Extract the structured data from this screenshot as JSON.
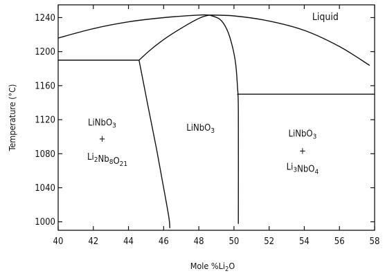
{
  "chart_data": {
    "type": "phase-diagram",
    "xlabel": {
      "pre": "Mole %Li",
      "sub": "2",
      "post": "O"
    },
    "ylabel": "Temperature (°C)",
    "xlim": [
      40,
      58
    ],
    "ylim": [
      990,
      1255
    ],
    "x_ticks": [
      40,
      42,
      44,
      46,
      48,
      50,
      52,
      54,
      56,
      58
    ],
    "y_ticks": [
      1000,
      1040,
      1080,
      1120,
      1160,
      1200,
      1240
    ],
    "boundaries": [
      {
        "name": "liquidus-left",
        "points": [
          [
            40,
            1216
          ],
          [
            42,
            1227
          ],
          [
            44,
            1235
          ],
          [
            46,
            1240
          ],
          [
            48,
            1243
          ],
          [
            48.6,
            1243
          ]
        ]
      },
      {
        "name": "liquidus-right",
        "points": [
          [
            48.6,
            1243
          ],
          [
            50,
            1242
          ],
          [
            52,
            1236
          ],
          [
            54,
            1225
          ],
          [
            56,
            1206
          ],
          [
            57.7,
            1184
          ]
        ]
      },
      {
        "name": "solidus-left",
        "points": [
          [
            44.6,
            1190
          ],
          [
            45.3,
            1203
          ],
          [
            46.2,
            1217
          ],
          [
            47.2,
            1230
          ],
          [
            48.1,
            1240
          ],
          [
            48.6,
            1243
          ]
        ]
      },
      {
        "name": "solvus-left",
        "points": [
          [
            44.6,
            1190
          ],
          [
            45.1,
            1137
          ],
          [
            45.6,
            1085
          ],
          [
            46.0,
            1040
          ],
          [
            46.3,
            1005
          ],
          [
            46.35,
            993
          ]
        ]
      },
      {
        "name": "solidus-right",
        "points": [
          [
            48.6,
            1243
          ],
          [
            49.2,
            1238
          ],
          [
            49.6,
            1226
          ],
          [
            49.9,
            1207
          ],
          [
            50.1,
            1185
          ],
          [
            50.2,
            1158
          ],
          [
            50.25,
            1130
          ],
          [
            50.25,
            998
          ]
        ]
      },
      {
        "name": "eutectic-left",
        "points": [
          [
            40,
            1190
          ],
          [
            44.6,
            1190
          ]
        ]
      },
      {
        "name": "eutectic-right",
        "points": [
          [
            50.2,
            1150
          ],
          [
            58,
            1150
          ]
        ]
      }
    ],
    "regions": [
      {
        "name": "region-liquid",
        "label": "Liquid",
        "x": 55.2,
        "y": 1237
      },
      {
        "name": "region-two-phase-left",
        "lines": [
          {
            "parts": [
              {
                "t": "LiNbO"
              },
              {
                "t": "3",
                "sub": true
              }
            ],
            "x": 42.5,
            "y": 1113
          },
          {
            "parts": [
              {
                "t": "+"
              }
            ],
            "x": 42.5,
            "y": 1094
          },
          {
            "parts": [
              {
                "t": "Li"
              },
              {
                "t": "2",
                "sub": true
              },
              {
                "t": "Nb"
              },
              {
                "t": "8",
                "sub": true
              },
              {
                "t": "O"
              },
              {
                "t": "21",
                "sub": true
              }
            ],
            "x": 42.8,
            "y": 1073
          }
        ]
      },
      {
        "name": "region-single-phase",
        "lines": [
          {
            "parts": [
              {
                "t": "LiNbO"
              },
              {
                "t": "3",
                "sub": true
              }
            ],
            "x": 48.1,
            "y": 1107
          }
        ]
      },
      {
        "name": "region-two-phase-right",
        "lines": [
          {
            "parts": [
              {
                "t": "LiNbO"
              },
              {
                "t": "3",
                "sub": true
              }
            ],
            "x": 53.9,
            "y": 1100
          },
          {
            "parts": [
              {
                "t": "+"
              }
            ],
            "x": 53.9,
            "y": 1080
          },
          {
            "parts": [
              {
                "t": "Li"
              },
              {
                "t": "3",
                "sub": true
              },
              {
                "t": "NbO"
              },
              {
                "t": "4",
                "sub": true
              }
            ],
            "x": 53.9,
            "y": 1061
          }
        ]
      }
    ]
  }
}
